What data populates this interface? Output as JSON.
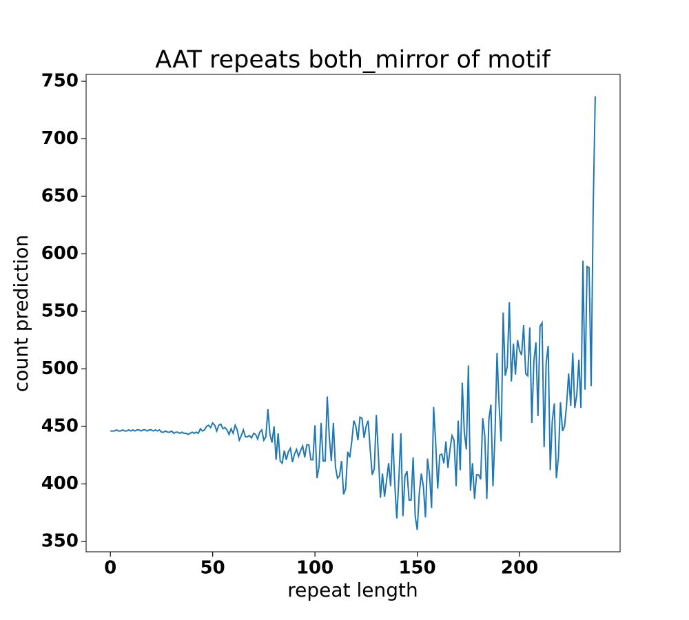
{
  "chart_data": {
    "type": "line",
    "title": "AAT repeats both_mirror of motif",
    "xlabel": "repeat length",
    "ylabel": "count prediction",
    "xlim": [
      -11.85,
      249.15
    ],
    "ylim": [
      341,
      756
    ],
    "xticks": [
      0,
      50,
      100,
      150,
      200
    ],
    "yticks": [
      350,
      400,
      450,
      500,
      550,
      600,
      650,
      700,
      750
    ],
    "series": [
      {
        "color": "#1f77b4",
        "x": [
          0,
          1,
          2,
          3,
          4,
          5,
          6,
          7,
          8,
          9,
          10,
          11,
          12,
          13,
          14,
          15,
          16,
          17,
          18,
          19,
          20,
          21,
          22,
          23,
          24,
          25,
          26,
          27,
          28,
          29,
          30,
          31,
          32,
          33,
          34,
          35,
          36,
          37,
          38,
          39,
          40,
          41,
          42,
          43,
          44,
          45,
          46,
          47,
          48,
          49,
          50,
          51,
          52,
          53,
          54,
          55,
          56,
          57,
          58,
          59,
          60,
          61,
          62,
          63,
          64,
          65,
          66,
          67,
          68,
          69,
          70,
          71,
          72,
          73,
          74,
          75,
          76,
          77,
          78,
          79,
          80,
          81,
          82,
          83,
          84,
          85,
          86,
          87,
          88,
          89,
          90,
          91,
          92,
          93,
          94,
          95,
          96,
          97,
          98,
          99,
          100,
          101,
          102,
          103,
          104,
          105,
          106,
          107,
          108,
          109,
          110,
          111,
          112,
          113,
          114,
          115,
          116,
          117,
          118,
          119,
          120,
          121,
          122,
          123,
          124,
          125,
          126,
          127,
          128,
          129,
          130,
          131,
          132,
          133,
          134,
          135,
          136,
          137,
          138,
          139,
          140,
          141,
          142,
          143,
          144,
          145,
          146,
          147,
          148,
          149,
          150,
          151,
          152,
          153,
          154,
          155,
          156,
          157,
          158,
          159,
          160,
          161,
          162,
          163,
          164,
          165,
          166,
          167,
          168,
          169,
          170,
          171,
          172,
          173,
          174,
          175,
          176,
          177,
          178,
          179,
          180,
          181,
          182,
          183,
          184,
          185,
          186,
          187,
          188,
          189,
          190,
          191,
          192,
          193,
          194,
          195,
          196,
          197,
          198,
          199,
          200,
          201,
          202,
          203,
          204,
          205,
          206,
          207,
          208,
          209,
          210,
          211,
          212,
          213,
          214,
          215,
          216,
          217,
          218,
          219,
          220,
          221,
          222,
          223,
          224,
          225,
          226,
          227,
          228,
          229,
          230,
          231,
          232,
          233,
          234,
          235,
          236,
          237
        ],
        "values": [
          446,
          446,
          446,
          447,
          446,
          446,
          447,
          446,
          446,
          447,
          446,
          447,
          446,
          447,
          447,
          446,
          447,
          447,
          446,
          447,
          447,
          446,
          447,
          446,
          447,
          445,
          445,
          446,
          445,
          445,
          446,
          444,
          445,
          445,
          444,
          445,
          444,
          444,
          443,
          444,
          445,
          444,
          445,
          444,
          448,
          446,
          447,
          450,
          451,
          449,
          453,
          451,
          446,
          451,
          452,
          448,
          449,
          447,
          443,
          448,
          444,
          451,
          447,
          438,
          442,
          447,
          441,
          441,
          442,
          440,
          444,
          443,
          439,
          445,
          447,
          438,
          441,
          465,
          443,
          436,
          450,
          421,
          444,
          420,
          418,
          429,
          421,
          428,
          431,
          419,
          426,
          430,
          424,
          429,
          433,
          423,
          434,
          434,
          421,
          421,
          451,
          405,
          415,
          453,
          420,
          420,
          476,
          441,
          420,
          453,
          415,
          405,
          407,
          420,
          391,
          396,
          428,
          423,
          437,
          455,
          450,
          438,
          458,
          457,
          440,
          450,
          455,
          430,
          408,
          413,
          460,
          425,
          388,
          409,
          389,
          403,
          418,
          398,
          444,
          400,
          370,
          404,
          444,
          372,
          407,
          411,
          386,
          386,
          423,
          372,
          360,
          392,
          409,
          398,
          371,
          422,
          408,
          379,
          467,
          436,
          396,
          425,
          426,
          418,
          437,
          414,
          430,
          442,
          438,
          398,
          455,
          412,
          488,
          445,
          430,
          503,
          394,
          418,
          387,
          408,
          408,
          404,
          457,
          442,
          387,
          456,
          469,
          398,
          443,
          514,
          469,
          437,
          549,
          494,
          502,
          558,
          489,
          522,
          495,
          525,
          516,
          512,
          538,
          496,
          494,
          536,
          453,
          507,
          523,
          459,
          537,
          540,
          432,
          505,
          520,
          412,
          455,
          470,
          405,
          423,
          471,
          446,
          450,
          469,
          496,
          468,
          514,
          466,
          478,
          508,
          466,
          594,
          482,
          589,
          588,
          485,
          640,
          737
        ]
      }
    ]
  }
}
